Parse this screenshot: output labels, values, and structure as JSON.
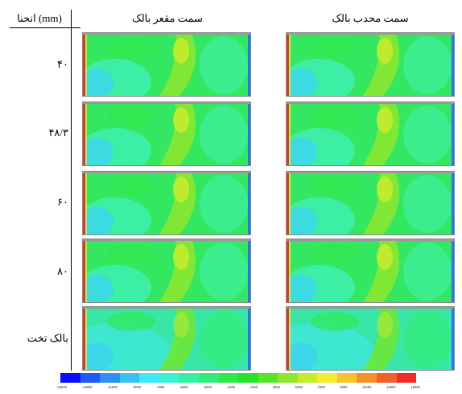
{
  "table": {
    "header_label": "انحنا (mm)",
    "col_concave": "سمت مقعر بالک",
    "col_convex": "سمت محدب بالک",
    "rows": [
      {
        "label": "۴۰"
      },
      {
        "label": "۴۸/۳"
      },
      {
        "label": "۶۰"
      },
      {
        "label": "۸۰"
      },
      {
        "label": "بالک تخت"
      }
    ]
  },
  "colorbar": {
    "colors": [
      "#0a10ff",
      "#1c5cff",
      "#2e8ff7",
      "#38bff3",
      "#3fe9f5",
      "#3cf2d0",
      "#36f0a2",
      "#33ec78",
      "#30e84a",
      "#29e229",
      "#57e42a",
      "#8ee72d",
      "#c5eb2f",
      "#f3ee31",
      "#f8c32f",
      "#f7912b",
      "#f2602a",
      "#ed2b27"
    ],
    "ticks": [
      "-15000",
      "-13000",
      "-11000",
      "-9000",
      "-7000",
      "-5000",
      "-3000",
      "-1000",
      "1000",
      "3000",
      "5000",
      "7000",
      "9000",
      "11000",
      "13000",
      "15000"
    ]
  }
}
